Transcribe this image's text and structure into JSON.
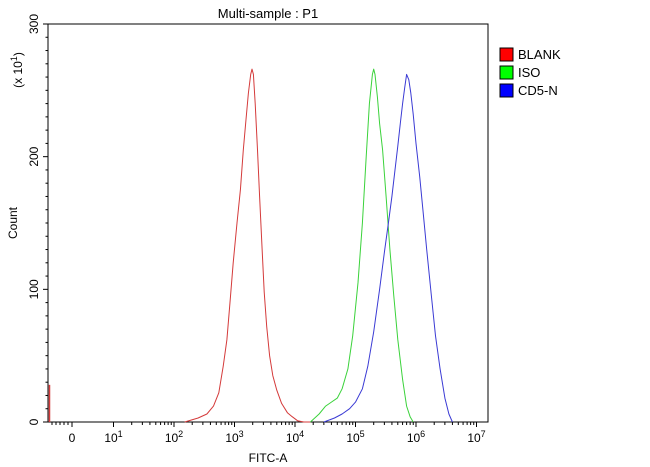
{
  "chart_data": {
    "type": "line",
    "title": "Multi-sample : P1",
    "xlabel": "FITC-A",
    "ylabel": "Count",
    "y_multiplier": "(x 10",
    "y_multiplier_exp": "1",
    "y_multiplier_close": ")",
    "x_scale": "biexponential (log above 10)",
    "xlim": [
      -1,
      10000000
    ],
    "ylim": [
      0,
      300
    ],
    "y_ticks": [
      "0",
      "100",
      "200",
      "300"
    ],
    "y_tick_values": [
      0,
      100,
      200,
      300
    ],
    "x_ticks": [
      {
        "base": "0",
        "exp": "",
        "value": 0
      },
      {
        "base": "10",
        "exp": "1",
        "value": 10
      },
      {
        "base": "10",
        "exp": "2",
        "value": 100
      },
      {
        "base": "10",
        "exp": "3",
        "value": 1000
      },
      {
        "base": "10",
        "exp": "4",
        "value": 10000
      },
      {
        "base": "10",
        "exp": "5",
        "value": 100000
      },
      {
        "base": "10",
        "exp": "6",
        "value": 1000000
      },
      {
        "base": "10",
        "exp": "7",
        "value": 10000000
      }
    ],
    "legend_position": "right",
    "grid": false,
    "series": [
      {
        "name": "BLANK",
        "color": "#d43a3a",
        "legend_color": "#ff0000",
        "x": [
          150,
          250,
          350,
          450,
          550,
          650,
          750,
          850,
          950,
          1100,
          1250,
          1400,
          1550,
          1700,
          1850,
          1950,
          2050,
          2200,
          2400,
          2600,
          2850,
          3100,
          3400,
          3800,
          4300,
          5000,
          6000,
          7500,
          9000,
          11000,
          14000,
          18000
        ],
        "y": [
          0,
          3,
          6,
          12,
          22,
          42,
          62,
          92,
          120,
          150,
          175,
          205,
          228,
          248,
          262,
          266,
          262,
          240,
          205,
          170,
          132,
          98,
          72,
          50,
          35,
          24,
          14,
          7,
          4,
          1,
          0,
          0
        ]
      },
      {
        "name": "ISO",
        "color": "#3ad23a",
        "legend_color": "#00ff00",
        "x": [
          18000,
          25000,
          32000,
          40000,
          50000,
          60000,
          75000,
          90000,
          110000,
          130000,
          150000,
          170000,
          190000,
          200000,
          210000,
          230000,
          250000,
          280000,
          320000,
          370000,
          430000,
          500000,
          600000,
          700000,
          800000,
          900000
        ],
        "y": [
          0,
          6,
          12,
          15,
          18,
          25,
          40,
          65,
          105,
          150,
          200,
          240,
          262,
          266,
          262,
          245,
          225,
          205,
          170,
          130,
          95,
          62,
          32,
          12,
          4,
          0
        ]
      },
      {
        "name": "CD5-N",
        "color": "#3a3ad4",
        "legend_color": "#0000ff",
        "x": [
          30000,
          45000,
          60000,
          80000,
          100000,
          130000,
          160000,
          200000,
          250000,
          300000,
          350000,
          400000,
          450000,
          500000,
          550000,
          600000,
          650000,
          700000,
          760000,
          820000,
          900000,
          1000000,
          1150000,
          1300000,
          1500000,
          1800000,
          2100000,
          2500000,
          3000000,
          3500000,
          4000000
        ],
        "y": [
          0,
          3,
          6,
          10,
          15,
          25,
          42,
          68,
          100,
          128,
          150,
          170,
          190,
          208,
          225,
          240,
          252,
          262,
          258,
          248,
          232,
          210,
          185,
          160,
          130,
          95,
          65,
          40,
          18,
          6,
          0
        ]
      }
    ]
  }
}
